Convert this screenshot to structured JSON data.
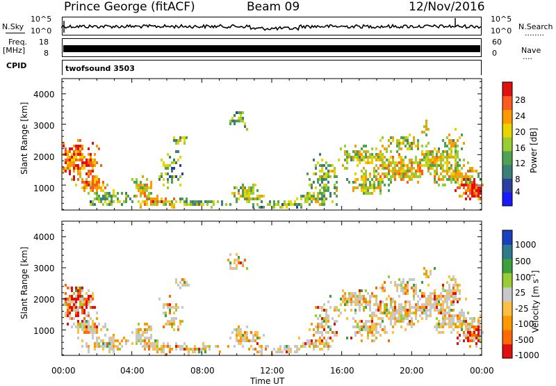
{
  "header": {
    "station": "Prince George (fitACF)",
    "beam": "Beam 09",
    "date": "12/Nov/2016"
  },
  "side_labels": {
    "nsky": "N.Sky",
    "nsearch": "N.Search",
    "nsearch_dots": "........",
    "freq": "Freq.",
    "freq_unit": "[MHz]",
    "nave": "Nave",
    "nave_dots": "....",
    "cpid": "CPID"
  },
  "noise_panel": {
    "left_ticks": [
      "10^5",
      "10^0"
    ],
    "right_ticks": [
      "10^5",
      "10^0"
    ]
  },
  "freq_panel": {
    "left_ticks": [
      "18",
      "8"
    ],
    "right_ticks": [
      "60",
      "0"
    ]
  },
  "cpid_panel": {
    "text": "twofsound 3503"
  },
  "colors": {
    "power_scale": [
      "#1a1aff",
      "#2a3fa0",
      "#3d7f78",
      "#4fa24f",
      "#9acd32",
      "#e8d400",
      "#ff9900",
      "#ff5a1f",
      "#e01010"
    ],
    "velocity_scale": [
      "#e01010",
      "#ff6a00",
      "#ff9900",
      "#ffbf40",
      "#c8c8c8",
      "#9acd32",
      "#3ca03c",
      "#2d7a8a",
      "#1a3fbf"
    ]
  },
  "chart_data": [
    {
      "type": "heatmap",
      "title": "Power [dB]",
      "xlabel": "Time UT",
      "ylabel": "Slant Range [km]",
      "x_ticks": [
        "00:00",
        "04:00",
        "08:00",
        "12:00",
        "16:00",
        "20:00",
        "00:00"
      ],
      "y_ticks": [
        "1000",
        "2000",
        "3000",
        "4000"
      ],
      "colorbar_label": "Power [dB]",
      "colorbar_ticks": [
        "4",
        "8",
        "12",
        "16",
        "20",
        "24",
        "28"
      ],
      "xlim": [
        0,
        24
      ],
      "ylim": [
        180,
        4500
      ],
      "clim": [
        0,
        30
      ]
    },
    {
      "type": "heatmap",
      "xlabel": "Time UT",
      "ylabel": "Slant Range [km]",
      "x_ticks": [
        "00:00",
        "04:00",
        "08:00",
        "12:00",
        "16:00",
        "20:00",
        "00:00"
      ],
      "y_ticks": [
        "1000",
        "2000",
        "3000",
        "4000"
      ],
      "colorbar_label": "Velocity [m s^-1]",
      "colorbar_ticks": [
        "1000",
        "500",
        "100",
        "25",
        "-25",
        "-100",
        "-500",
        "-1000"
      ],
      "xlim": [
        0,
        24
      ],
      "ylim": [
        180,
        4500
      ],
      "clim": [
        -1000,
        1000
      ]
    }
  ]
}
